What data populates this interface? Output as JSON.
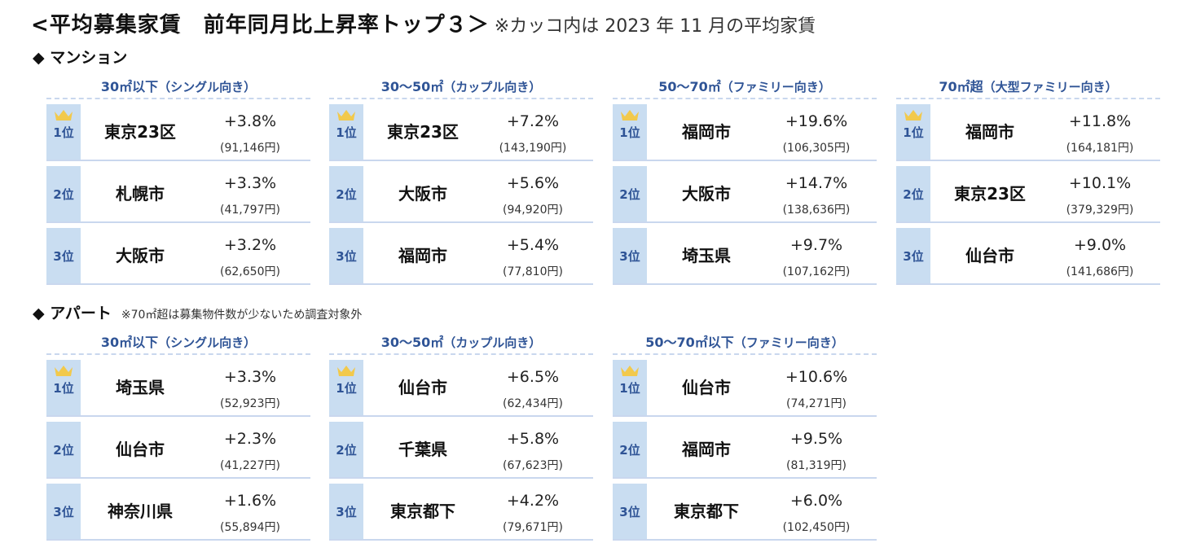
{
  "title": {
    "main": "<平均募集家賃　前年同月比上昇率トップ３＞",
    "note": "※カッコ内は 2023 年 11 月の平均家賃"
  },
  "rank_labels": [
    "1位",
    "2位",
    "3位"
  ],
  "icons": {
    "top_rank": "crown-icon",
    "section_bullet": "diamond-icon"
  },
  "colors": {
    "rank_bg": "#c9ddf1",
    "accent_text": "#2f5496",
    "crown": "#f2c94c"
  },
  "sections": [
    {
      "name": "◆ マンション",
      "note": "",
      "columns": [
        {
          "title": "30㎡以下",
          "sub": "（シングル向き）",
          "entries": [
            {
              "city": "東京23区",
              "pct": "+3.8%",
              "rent": "(91,146円)"
            },
            {
              "city": "札幌市",
              "pct": "+3.3%",
              "rent": "(41,797円)"
            },
            {
              "city": "大阪市",
              "pct": "+3.2%",
              "rent": "(62,650円)"
            }
          ]
        },
        {
          "title": "30～50㎡",
          "sub": "（カップル向き）",
          "entries": [
            {
              "city": "東京23区",
              "pct": "+7.2%",
              "rent": "(143,190円)"
            },
            {
              "city": "大阪市",
              "pct": "+5.6%",
              "rent": "(94,920円)"
            },
            {
              "city": "福岡市",
              "pct": "+5.4%",
              "rent": "(77,810円)"
            }
          ]
        },
        {
          "title": "50～70㎡",
          "sub": "（ファミリー向き）",
          "entries": [
            {
              "city": "福岡市",
              "pct": "+19.6%",
              "rent": "(106,305円)"
            },
            {
              "city": "大阪市",
              "pct": "+14.7%",
              "rent": "(138,636円)"
            },
            {
              "city": "埼玉県",
              "pct": "+9.7%",
              "rent": "(107,162円)"
            }
          ]
        },
        {
          "title": "70㎡超",
          "sub": "（大型ファミリー向き）",
          "entries": [
            {
              "city": "福岡市",
              "pct": "+11.8%",
              "rent": "(164,181円)"
            },
            {
              "city": "東京23区",
              "pct": "+10.1%",
              "rent": "(379,329円)"
            },
            {
              "city": "仙台市",
              "pct": "+9.0%",
              "rent": "(141,686円)"
            }
          ]
        }
      ]
    },
    {
      "name": "◆ アパート",
      "note": "※70㎡超は募集物件数が少ないため調査対象外",
      "columns": [
        {
          "title": "30㎡以下",
          "sub": "（シングル向き）",
          "entries": [
            {
              "city": "埼玉県",
              "pct": "+3.3%",
              "rent": "(52,923円)"
            },
            {
              "city": "仙台市",
              "pct": "+2.3%",
              "rent": "(41,227円)"
            },
            {
              "city": "神奈川県",
              "pct": "+1.6%",
              "rent": "(55,894円)"
            }
          ]
        },
        {
          "title": "30～50㎡",
          "sub": "（カップル向き）",
          "entries": [
            {
              "city": "仙台市",
              "pct": "+6.5%",
              "rent": "(62,434円)"
            },
            {
              "city": "千葉県",
              "pct": "+5.8%",
              "rent": "(67,623円)"
            },
            {
              "city": "東京都下",
              "pct": "+4.2%",
              "rent": "(79,671円)"
            }
          ]
        },
        {
          "title": "50～70㎡以下",
          "sub": "（ファミリー向き）",
          "entries": [
            {
              "city": "仙台市",
              "pct": "+10.6%",
              "rent": "(74,271円)"
            },
            {
              "city": "福岡市",
              "pct": "+9.5%",
              "rent": "(81,319円)"
            },
            {
              "city": "東京都下",
              "pct": "+6.0%",
              "rent": "(102,450円)"
            }
          ]
        }
      ]
    }
  ]
}
